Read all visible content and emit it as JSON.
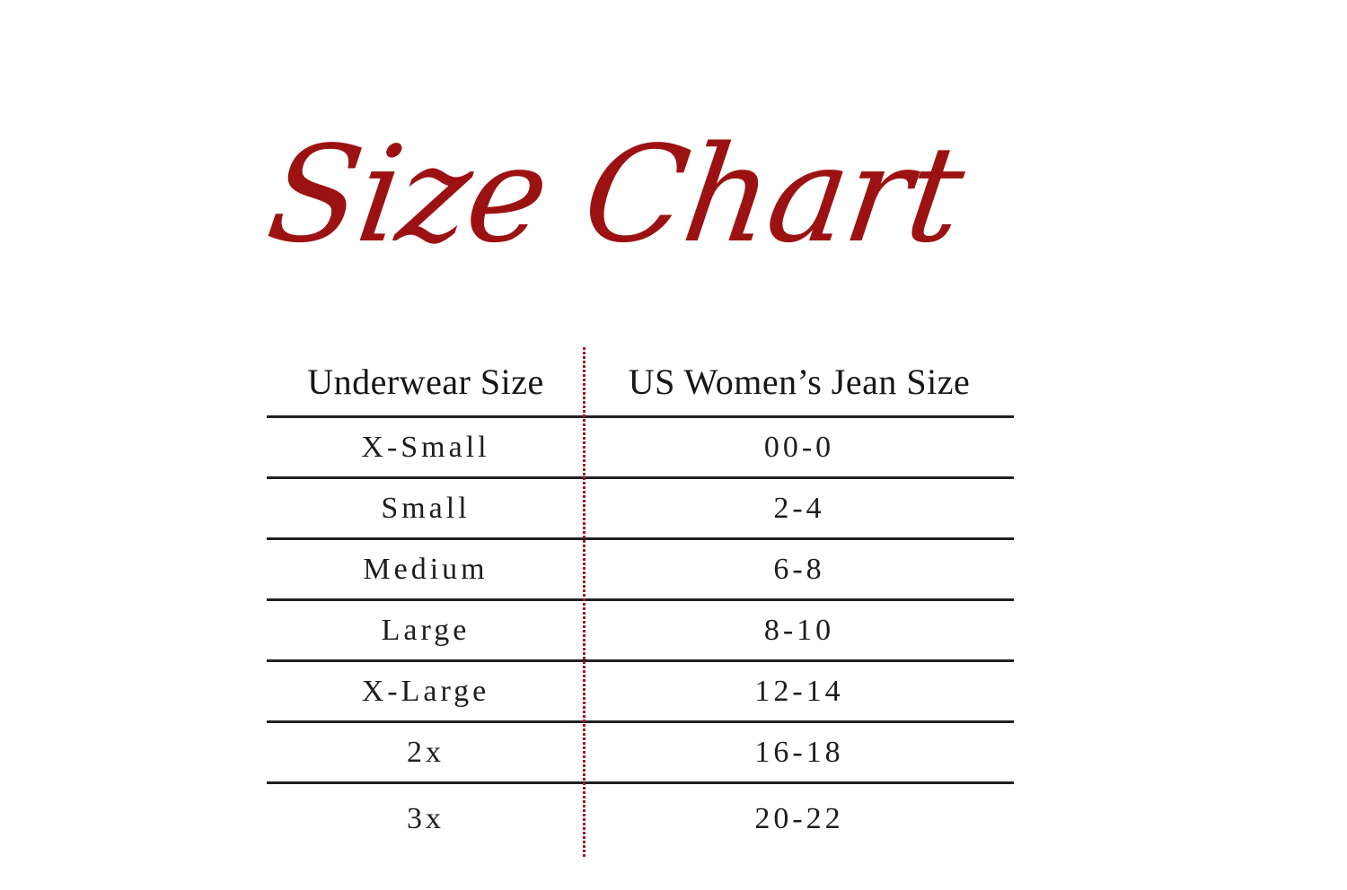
{
  "page": {
    "background": "#ffffff"
  },
  "title": {
    "text": "Size Chart",
    "color": "#9c1212"
  },
  "table": {
    "columns": [
      "Underwear Size",
      "US Women’s Jean Size"
    ],
    "rows": [
      {
        "size": "X-Small",
        "jean": "00-0"
      },
      {
        "size": "Small",
        "jean": "2-4"
      },
      {
        "size": "Medium",
        "jean": "6-8"
      },
      {
        "size": "Large",
        "jean": "8-10"
      },
      {
        "size": "X-Large",
        "jean": "12-14"
      },
      {
        "size": "2x",
        "jean": "16-18"
      },
      {
        "size": "3x",
        "jean": "20-22"
      }
    ],
    "divider_color": "#a01b1b",
    "line_color": "#231f20",
    "text_color": "#1e1c1d"
  },
  "chart_data": {
    "type": "table",
    "title": "Size Chart",
    "columns": [
      "Underwear Size",
      "US Women’s Jean Size"
    ],
    "rows": [
      [
        "X-Small",
        "00-0"
      ],
      [
        "Small",
        "2-4"
      ],
      [
        "Medium",
        "6-8"
      ],
      [
        "Large",
        "8-10"
      ],
      [
        "X-Large",
        "12-14"
      ],
      [
        "2x",
        "16-18"
      ],
      [
        "3x",
        "20-22"
      ]
    ],
    "layout": {
      "grid": "horizontal row separators only, no border under last row",
      "column_separator": "red dotted vertical line",
      "header_style": "serif, no letter-spacing",
      "cell_style": "serif, wide letter-spacing, centered"
    }
  }
}
